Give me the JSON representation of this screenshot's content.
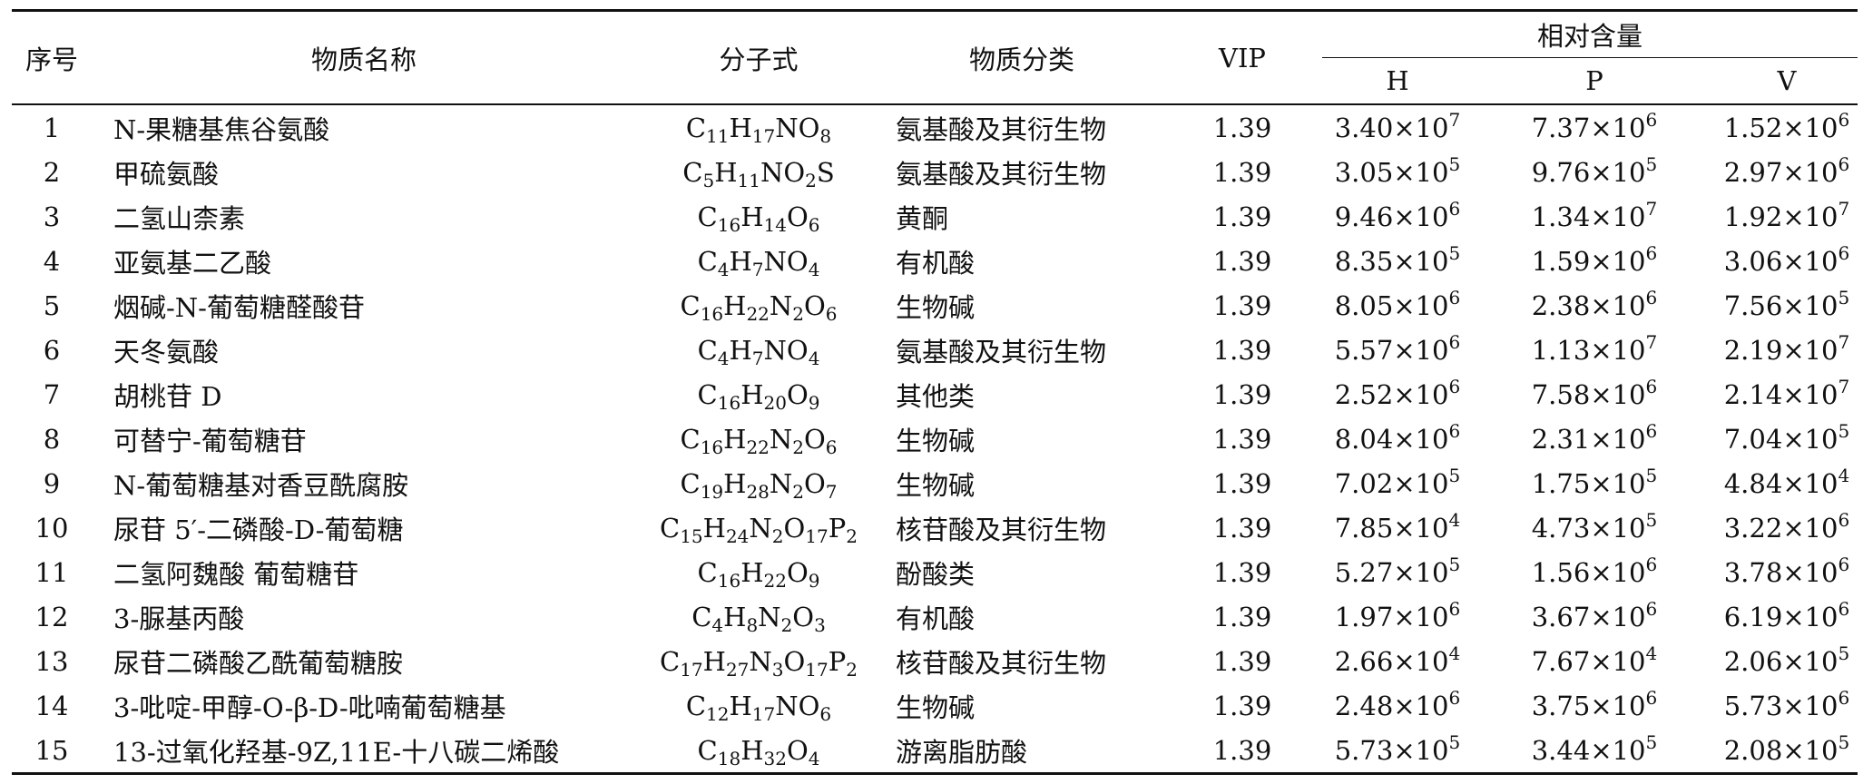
{
  "table": {
    "header": {
      "no": "序号",
      "name": "物质名称",
      "formula": "分子式",
      "class": "物质分类",
      "vip": "VIP",
      "relative": "相对含量",
      "groups": [
        "H",
        "P",
        "V"
      ]
    },
    "rows": [
      [
        1,
        "N-果糖基焦谷氨酸",
        "C11H17NO8",
        "氨基酸及其衍生物",
        1.39,
        [
          "3.40",
          "×10",
          7
        ],
        [
          "7.37",
          "×10",
          6
        ],
        [
          "1.52",
          "×10",
          6
        ]
      ],
      [
        2,
        "甲硫氨酸",
        "C5H11NO2S",
        "氨基酸及其衍生物",
        1.39,
        [
          "3.05",
          "×10",
          5
        ],
        [
          "9.76",
          "×10",
          5
        ],
        [
          "2.97",
          "×10",
          6
        ]
      ],
      [
        3,
        "二氢山柰素",
        "C16H14O6",
        "黄酮",
        1.39,
        [
          "9.46",
          "×10",
          6
        ],
        [
          "1.34",
          "×10",
          7
        ],
        [
          "1.92",
          "×10",
          7
        ]
      ],
      [
        4,
        "亚氨基二乙酸",
        "C4H7NO4",
        "有机酸",
        1.39,
        [
          "8.35",
          "×10",
          5
        ],
        [
          "1.59",
          "×10",
          6
        ],
        [
          "3.06",
          "×10",
          6
        ]
      ],
      [
        5,
        "烟碱-N-葡萄糖醛酸苷",
        "C16H22N2O6",
        "生物碱",
        1.39,
        [
          "8.05",
          "×10",
          6
        ],
        [
          "2.38",
          "×10",
          6
        ],
        [
          "7.56",
          "×10",
          5
        ]
      ],
      [
        6,
        "天冬氨酸",
        "C4H7NO4",
        "氨基酸及其衍生物",
        1.39,
        [
          "5.57",
          "×10",
          6
        ],
        [
          "1.13",
          "×10",
          7
        ],
        [
          "2.19",
          "×10",
          7
        ]
      ],
      [
        7,
        "胡桃苷 D",
        "C16H20O9",
        "其他类",
        1.39,
        [
          "2.52",
          "×10",
          6
        ],
        [
          "7.58",
          "×10",
          6
        ],
        [
          "2.14",
          "×10",
          7
        ]
      ],
      [
        8,
        "可替宁-葡萄糖苷",
        "C16H22N2O6",
        "生物碱",
        1.39,
        [
          "8.04",
          "×10",
          6
        ],
        [
          "2.31",
          "×10",
          6
        ],
        [
          "7.04",
          "×10",
          5
        ]
      ],
      [
        9,
        "N-葡萄糖基对香豆酰腐胺",
        "C19H28N2O7",
        "生物碱",
        1.39,
        [
          "7.02",
          "×10",
          5
        ],
        [
          "1.75",
          "×10",
          5
        ],
        [
          "4.84",
          "×10",
          4
        ]
      ],
      [
        10,
        "尿苷 5′-二磷酸-D-葡萄糖",
        "C15H24N2O17P2",
        "核苷酸及其衍生物",
        1.39,
        [
          "7.85",
          "×10",
          4
        ],
        [
          "4.73",
          "×10",
          5
        ],
        [
          "3.22",
          "×10",
          6
        ]
      ],
      [
        11,
        "二氢阿魏酸 葡萄糖苷",
        "C16H22O9",
        "酚酸类",
        1.39,
        [
          "5.27",
          "×10",
          5
        ],
        [
          "1.56",
          "×10",
          6
        ],
        [
          "3.78",
          "×10",
          6
        ]
      ],
      [
        12,
        "3-脲基丙酸",
        "C4H8N2O3",
        "有机酸",
        1.39,
        [
          "1.97",
          "×10",
          6
        ],
        [
          "3.67",
          "×10",
          6
        ],
        [
          "6.19",
          "×10",
          6
        ]
      ],
      [
        13,
        "尿苷二磷酸乙酰葡萄糖胺",
        "C17H27N3O17P2",
        "核苷酸及其衍生物",
        1.39,
        [
          "2.66",
          "×10",
          4
        ],
        [
          "7.67",
          "×10",
          4
        ],
        [
          "2.06",
          "×10",
          5
        ]
      ],
      [
        14,
        "3-吡啶-甲醇-O-β-D-吡喃葡萄糖基",
        "C12H17NO6",
        "生物碱",
        1.39,
        [
          "2.48",
          "×10",
          6
        ],
        [
          "3.75",
          "×10",
          6
        ],
        [
          "5.73",
          "×10",
          6
        ]
      ],
      [
        15,
        "13-过氧化羟基-9Z,11E-十八碳二烯酸",
        "C18H32O4",
        "游离脂肪酸",
        1.39,
        [
          "5.73",
          "×10",
          5
        ],
        [
          "3.44",
          "×10",
          5
        ],
        [
          "2.08",
          "×10",
          5
        ]
      ]
    ]
  }
}
